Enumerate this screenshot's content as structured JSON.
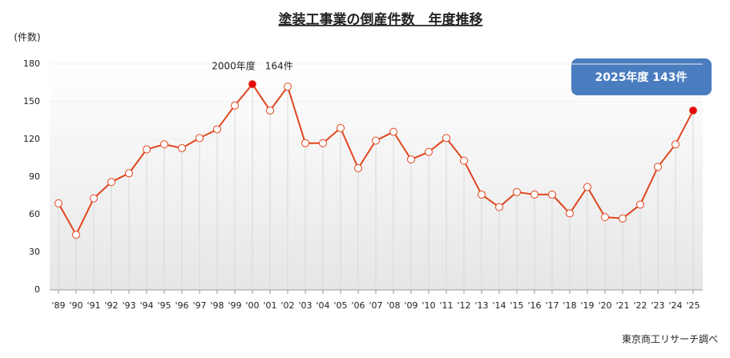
{
  "chart_data": {
    "type": "line",
    "title": "塗装工事業の倒産件数　年度推移",
    "y_label": "(件数)",
    "source": "東京商工リサーチ調べ",
    "categories": [
      "'89",
      "'90",
      "'91",
      "'92",
      "'93",
      "'94",
      "'95",
      "'96",
      "'97",
      "'98",
      "'99",
      "'00",
      "'01",
      "'02",
      "'03",
      "'04",
      "'05",
      "'06",
      "'07",
      "'08",
      "'09",
      "'10",
      "'11",
      "'12",
      "'13",
      "'14",
      "'15",
      "'16",
      "'17",
      "'18",
      "'19",
      "'20",
      "'21",
      "'22",
      "'23",
      "'24",
      "'25"
    ],
    "series": [
      {
        "name": "倒産件数",
        "color": "#e0461e",
        "values": [
          69,
          44,
          73,
          86,
          93,
          112,
          116,
          113,
          121,
          128,
          147,
          164,
          143,
          162,
          117,
          117,
          129,
          97,
          119,
          126,
          104,
          110,
          121,
          103,
          76,
          66,
          78,
          76,
          76,
          61,
          82,
          58,
          57,
          68,
          98,
          116,
          143
        ],
        "marker_colors": [
          "#ffffff",
          "#ffffff",
          "#ffffff",
          "#ffffff",
          "#ffffff",
          "#ffffff",
          "#ffffff",
          "#ffffff",
          "#ffffff",
          "#ffffff",
          "#ffffff",
          "#e60012",
          "#ffffff",
          "#ffffff",
          "#ffffff",
          "#ffffff",
          "#ffffff",
          "#ffffff",
          "#ffffff",
          "#ffffff",
          "#ffffff",
          "#ffffff",
          "#ffffff",
          "#ffffff",
          "#ffffff",
          "#ffffff",
          "#ffffff",
          "#ffffff",
          "#ffffff",
          "#ffffff",
          "#ffffff",
          "#ffffff",
          "#ffffff",
          "#ffffff",
          "#ffffff",
          "#ffffff",
          "#e60012"
        ]
      }
    ],
    "ylim": [
      0,
      180
    ],
    "yticks": [
      0,
      30,
      60,
      90,
      120,
      150,
      180
    ],
    "annotations": [
      {
        "text": "2000年度　164件",
        "category": "'00"
      },
      {
        "text": "2025年度 143件",
        "category": "'25"
      }
    ]
  }
}
